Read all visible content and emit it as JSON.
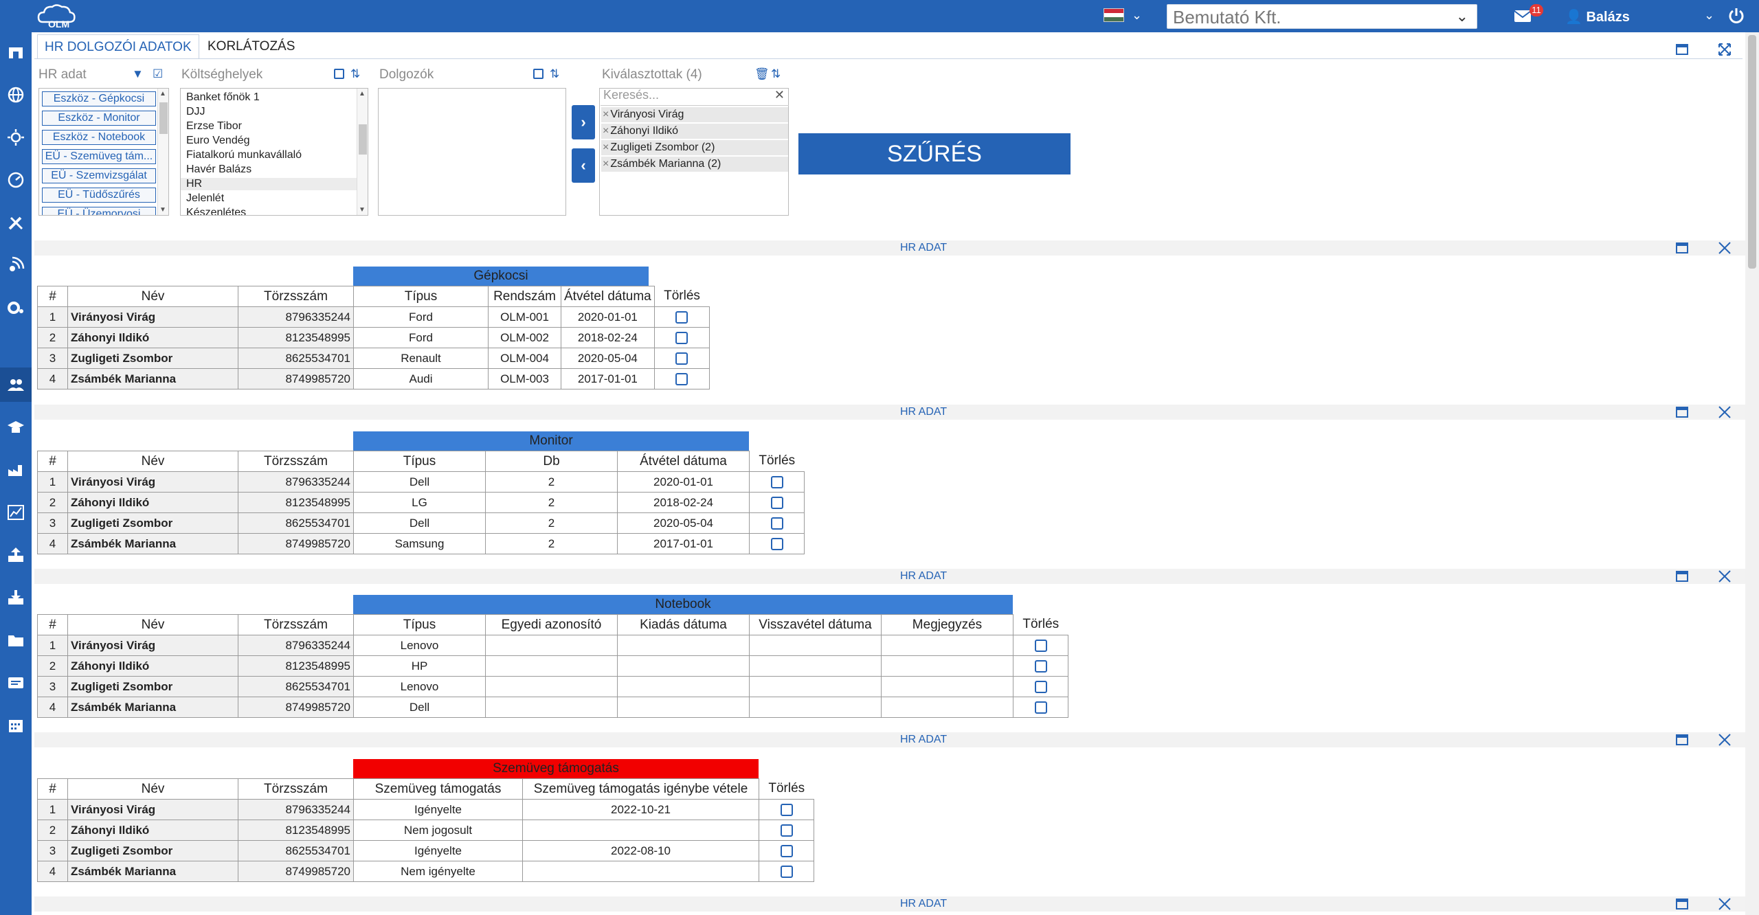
{
  "header": {
    "logo_text": "OLM",
    "company": "Bemutató Kft.",
    "mail_count": "11",
    "user_name": "Balázs"
  },
  "tabs": [
    {
      "label": "HR DOLGOZÓI ADATOK",
      "active": true
    },
    {
      "label": "KORLÁTOZÁS",
      "active": false
    }
  ],
  "filters": {
    "hr_label": "HR adat",
    "hr_items": [
      "Eszköz - Gépkocsi",
      "Eszköz - Monitor",
      "Eszköz - Notebook",
      "EÜ - Szemüveg tám...",
      "EÜ - Szemvizsgálat",
      "EÜ - Tüdőszűrés",
      "EÜ - Üzemorvosi"
    ],
    "cost_label": "Költséghelyek",
    "cost_items": [
      "Banket főnök 1",
      "DJJ",
      "Erzse Tibor",
      "Euro Vendég",
      "Fiatalkorú munkavállaló",
      "Havér Balázs",
      "HR",
      "Jelenlét",
      "Készenlétes"
    ],
    "workers_label": "Dolgozók",
    "selected_label": "Kiválasztottak (4)",
    "search_placeholder": "Keresés...",
    "selected_items": [
      "Virányosi Virág",
      "Záhonyi Ildikó",
      "Zugligeti Zsombor (2)",
      "Zsámbék Marianna (2)"
    ],
    "filter_button": "SZŰRÉS"
  },
  "section_title": "HR ADAT",
  "common_headers": {
    "idx": "#",
    "name": "Név",
    "tsz": "Törzsszám",
    "delete": "Törlés"
  },
  "employees": [
    {
      "idx": "1",
      "name": "Virányosi Virág",
      "tsz": "8796335244"
    },
    {
      "idx": "2",
      "name": "Záhonyi Ildikó",
      "tsz": "8123548995"
    },
    {
      "idx": "3",
      "name": "Zugligeti Zsombor",
      "tsz": "8625534701"
    },
    {
      "idx": "4",
      "name": "Zsámbék Marianna",
      "tsz": "8749985720"
    }
  ],
  "tables": {
    "gepkocsi": {
      "title": "Gépkocsi",
      "color": "#3b7fd6",
      "headers": [
        "Típus",
        "Rendszám",
        "Átvétel dátuma"
      ],
      "rows": [
        [
          "Ford",
          "OLM-001",
          "2020-01-01"
        ],
        [
          "Ford",
          "OLM-002",
          "2018-02-24"
        ],
        [
          "Renault",
          "OLM-004",
          "2020-05-04"
        ],
        [
          "Audi",
          "OLM-003",
          "2017-01-01"
        ]
      ]
    },
    "monitor": {
      "title": "Monitor",
      "color": "#3b7fd6",
      "headers": [
        "Típus",
        "Db",
        "Átvétel dátuma"
      ],
      "rows": [
        [
          "Dell",
          "2",
          "2020-01-01"
        ],
        [
          "LG",
          "2",
          "2018-02-24"
        ],
        [
          "Dell",
          "2",
          "2020-05-04"
        ],
        [
          "Samsung",
          "2",
          "2017-01-01"
        ]
      ]
    },
    "notebook": {
      "title": "Notebook",
      "color": "#3b7fd6",
      "headers": [
        "Típus",
        "Egyedi azonosító",
        "Kiadás dátuma",
        "Visszavétel dátuma",
        "Megjegyzés"
      ],
      "rows": [
        [
          "Lenovo",
          "",
          "",
          "",
          ""
        ],
        [
          "HP",
          "",
          "",
          "",
          ""
        ],
        [
          "Lenovo",
          "",
          "",
          "",
          ""
        ],
        [
          "Dell",
          "",
          "",
          "",
          ""
        ]
      ]
    },
    "szemuveg": {
      "title": "Szemüveg támogatás",
      "color": "#f20000",
      "headers": [
        "Szemüveg támogatás",
        "Szemüveg támogatás igénybe vétele"
      ],
      "rows": [
        [
          "Igényelte",
          "2022-10-21"
        ],
        [
          "Nem jogosult",
          ""
        ],
        [
          "Igényelte",
          "2022-08-10"
        ],
        [
          "Nem igényelte",
          ""
        ]
      ]
    }
  }
}
